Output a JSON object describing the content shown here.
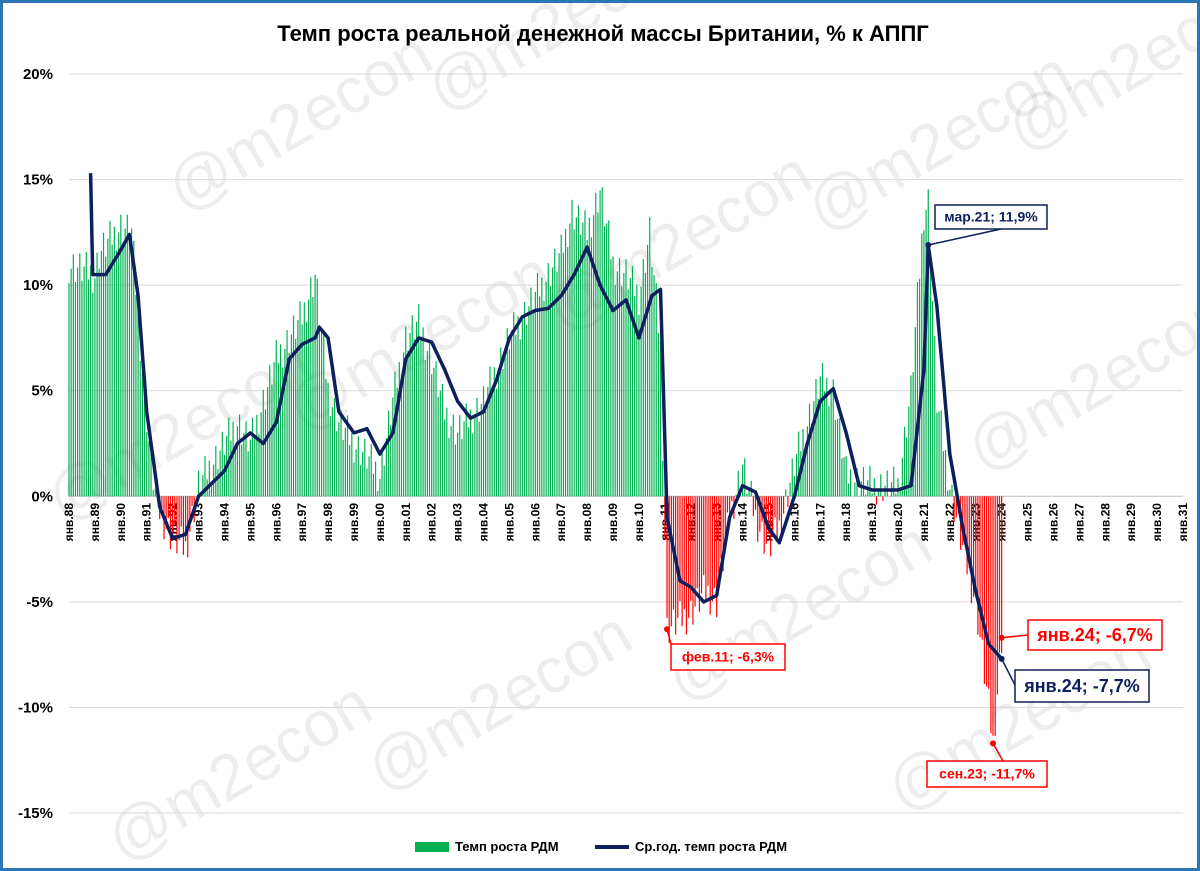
{
  "chart_data": {
    "type": "bar+line",
    "title": "Темп роста реальной денежной массы Британии, % к АППГ",
    "ylim": [
      -15,
      20
    ],
    "y_ticks": [
      -15,
      -10,
      -5,
      0,
      5,
      10,
      15,
      20
    ],
    "y_tick_labels": [
      "-15%",
      "-10%",
      "-5%",
      "0%",
      "5%",
      "10%",
      "15%",
      "20%"
    ],
    "x_start": "янв.88",
    "x_end": "янв.31",
    "x_tick_labels": [
      "янв.88",
      "янв.89",
      "янв.90",
      "янв.91",
      "янв.92",
      "янв.93",
      "янв.94",
      "янв.95",
      "янв.96",
      "янв.97",
      "янв.98",
      "янв.99",
      "янв.00",
      "янв.01",
      "янв.02",
      "янв.03",
      "янв.04",
      "янв.05",
      "янв.06",
      "янв.07",
      "янв.08",
      "янв.09",
      "янв.10",
      "янв.11",
      "янв.12",
      "янв.13",
      "янв.14",
      "янв.15",
      "янв.16",
      "янв.17",
      "янв.18",
      "янв.19",
      "янв.20",
      "янв.21",
      "янв.22",
      "янв.23",
      "янв.24",
      "янв.25",
      "янв.26",
      "янв.27",
      "янв.28",
      "янв.29",
      "янв.30",
      "янв.31"
    ],
    "grid": true,
    "legend_position": "bottom",
    "series": [
      {
        "name": "Темп роста РДМ",
        "kind": "bar",
        "color": "#00b050",
        "negative_color": "#ff0000",
        "frequency": "monthly",
        "anchors_x": [
          "янв.88",
          "янв.89",
          "мар.89",
          "янв.90",
          "июн.90",
          "ноя.90",
          "мар.91",
          "июн.91",
          "янв.92",
          "июл.92",
          "янв.93",
          "янв.94",
          "июл.94",
          "янв.95",
          "янв.96",
          "янв.97",
          "июл.97",
          "янв.98",
          "июн.98",
          "янв.99",
          "июн.99",
          "янв.00",
          "июл.00",
          "янв.01",
          "июл.01",
          "янв.02",
          "июл.02",
          "янв.03",
          "янв.04",
          "янв.05",
          "янв.06",
          "янв.07",
          "июн.07",
          "янв.08",
          "июл.08",
          "янв.09",
          "июл.09",
          "янв.10",
          "июн.10",
          "ноя.10",
          "фев.11",
          "янв.12",
          "авг.12",
          "янв.13",
          "июл.13",
          "янв.14",
          "июл.14",
          "янв.15",
          "июн.15",
          "янв.16",
          "янв.17",
          "июл.17",
          "янв.18",
          "янв.19",
          "янв.20",
          "июл.20",
          "янв.21",
          "мар.21",
          "июл.21",
          "янв.22",
          "июл.22",
          "янв.23",
          "сен.23",
          "янв.24"
        ],
        "anchors_y": [
          11.0,
          10.5,
          11.5,
          12.8,
          12.5,
          6.0,
          1.5,
          -0.5,
          -2.0,
          -2.5,
          0.5,
          2.5,
          3.5,
          2.5,
          6.5,
          8.5,
          10.5,
          5.0,
          3.5,
          2.5,
          2.0,
          1.0,
          4.5,
          7.5,
          8.2,
          6.5,
          4.0,
          3.0,
          4.5,
          7.5,
          9.5,
          11.5,
          13.5,
          12.5,
          14.5,
          11.0,
          10.5,
          9.5,
          12.5,
          7.0,
          -6.3,
          -5.5,
          -4.5,
          -5.0,
          -1.0,
          1.5,
          -1.0,
          -2.5,
          -1.5,
          1.5,
          5.5,
          5.0,
          1.0,
          0.5,
          0.5,
          5.0,
          13.5,
          14.0,
          4.5,
          0.5,
          -2.5,
          -5.0,
          -11.7,
          -6.7
        ]
      },
      {
        "name": "Ср.год. темп роста РДМ",
        "kind": "line",
        "color": "#0d1f5c",
        "frequency": "monthly",
        "start": "ноя.88",
        "anchors_x": [
          "ноя.88",
          "дек.88",
          "июн.89",
          "дек.89",
          "май.90",
          "сен.90",
          "янв.91",
          "июл.91",
          "янв.92",
          "июл.92",
          "янв.93",
          "янв.94",
          "июл.94",
          "янв.95",
          "июл.95",
          "янв.96",
          "июл.96",
          "янв.97",
          "июл.97",
          "сен.97",
          "янв.98",
          "июн.98",
          "янв.99",
          "июл.99",
          "янв.00",
          "июл.00",
          "янв.01",
          "июл.01",
          "янв.02",
          "июл.02",
          "янв.03",
          "июл.03",
          "янв.04",
          "июл.04",
          "янв.05",
          "июл.05",
          "янв.06",
          "июл.06",
          "янв.07",
          "июл.07",
          "янв.08",
          "июл.08",
          "янв.09",
          "июл.09",
          "янв.10",
          "июл.10",
          "ноя.10",
          "фев.11",
          "авг.11",
          "янв.12",
          "июл.12",
          "янв.13",
          "июл.13",
          "янв.14",
          "июл.14",
          "янв.15",
          "июн.15",
          "янв.16",
          "июл.16",
          "янв.17",
          "июл.17",
          "янв.18",
          "июл.18",
          "янв.19",
          "июл.19",
          "янв.20",
          "июл.20",
          "янв.21",
          "мар.21",
          "июл.21",
          "янв.22",
          "июл.22",
          "янв.23",
          "июл.23",
          "янв.24"
        ],
        "anchors_y": [
          15.3,
          10.5,
          10.5,
          11.5,
          12.4,
          9.5,
          4.0,
          -0.5,
          -2.0,
          -1.8,
          0.0,
          1.2,
          2.5,
          3.0,
          2.5,
          3.5,
          6.5,
          7.2,
          7.5,
          8.0,
          7.5,
          4.0,
          3.0,
          3.2,
          2.0,
          3.0,
          6.5,
          7.5,
          7.3,
          6.0,
          4.5,
          3.7,
          4.0,
          5.5,
          7.5,
          8.5,
          8.8,
          8.9,
          9.5,
          10.5,
          11.8,
          10.0,
          8.8,
          9.3,
          7.5,
          9.5,
          9.8,
          -1.0,
          -4.0,
          -4.3,
          -5.0,
          -4.7,
          -1.0,
          0.5,
          0.2,
          -1.5,
          -2.2,
          0.0,
          2.5,
          4.5,
          5.1,
          3.0,
          0.5,
          0.3,
          0.3,
          0.3,
          0.5,
          6.0,
          11.9,
          9.0,
          2.0,
          -1.5,
          -4.5,
          -7.0,
          -7.7
        ]
      }
    ],
    "annotations": [
      {
        "label": "мар.21; 11,9%",
        "x": "мар.21",
        "y": 11.9,
        "color": "#0d1f5c",
        "style": "normal"
      },
      {
        "label": "фев.11; -6,3%",
        "x": "фев.11",
        "y": -6.3,
        "color": "#ff0000",
        "style": "normal"
      },
      {
        "label": "янв.24; -6,7%",
        "x": "янв.24",
        "y": -6.7,
        "color": "#ff0000",
        "style": "large"
      },
      {
        "label": "янв.24; -7,7%",
        "x": "янв.24",
        "y": -7.7,
        "color": "#0d1f5c",
        "style": "large"
      },
      {
        "label": "сен.23; -11,7%",
        "x": "сен.23",
        "y": -11.7,
        "color": "#ff0000",
        "style": "normal"
      }
    ],
    "watermark_text": "@m2econ"
  }
}
